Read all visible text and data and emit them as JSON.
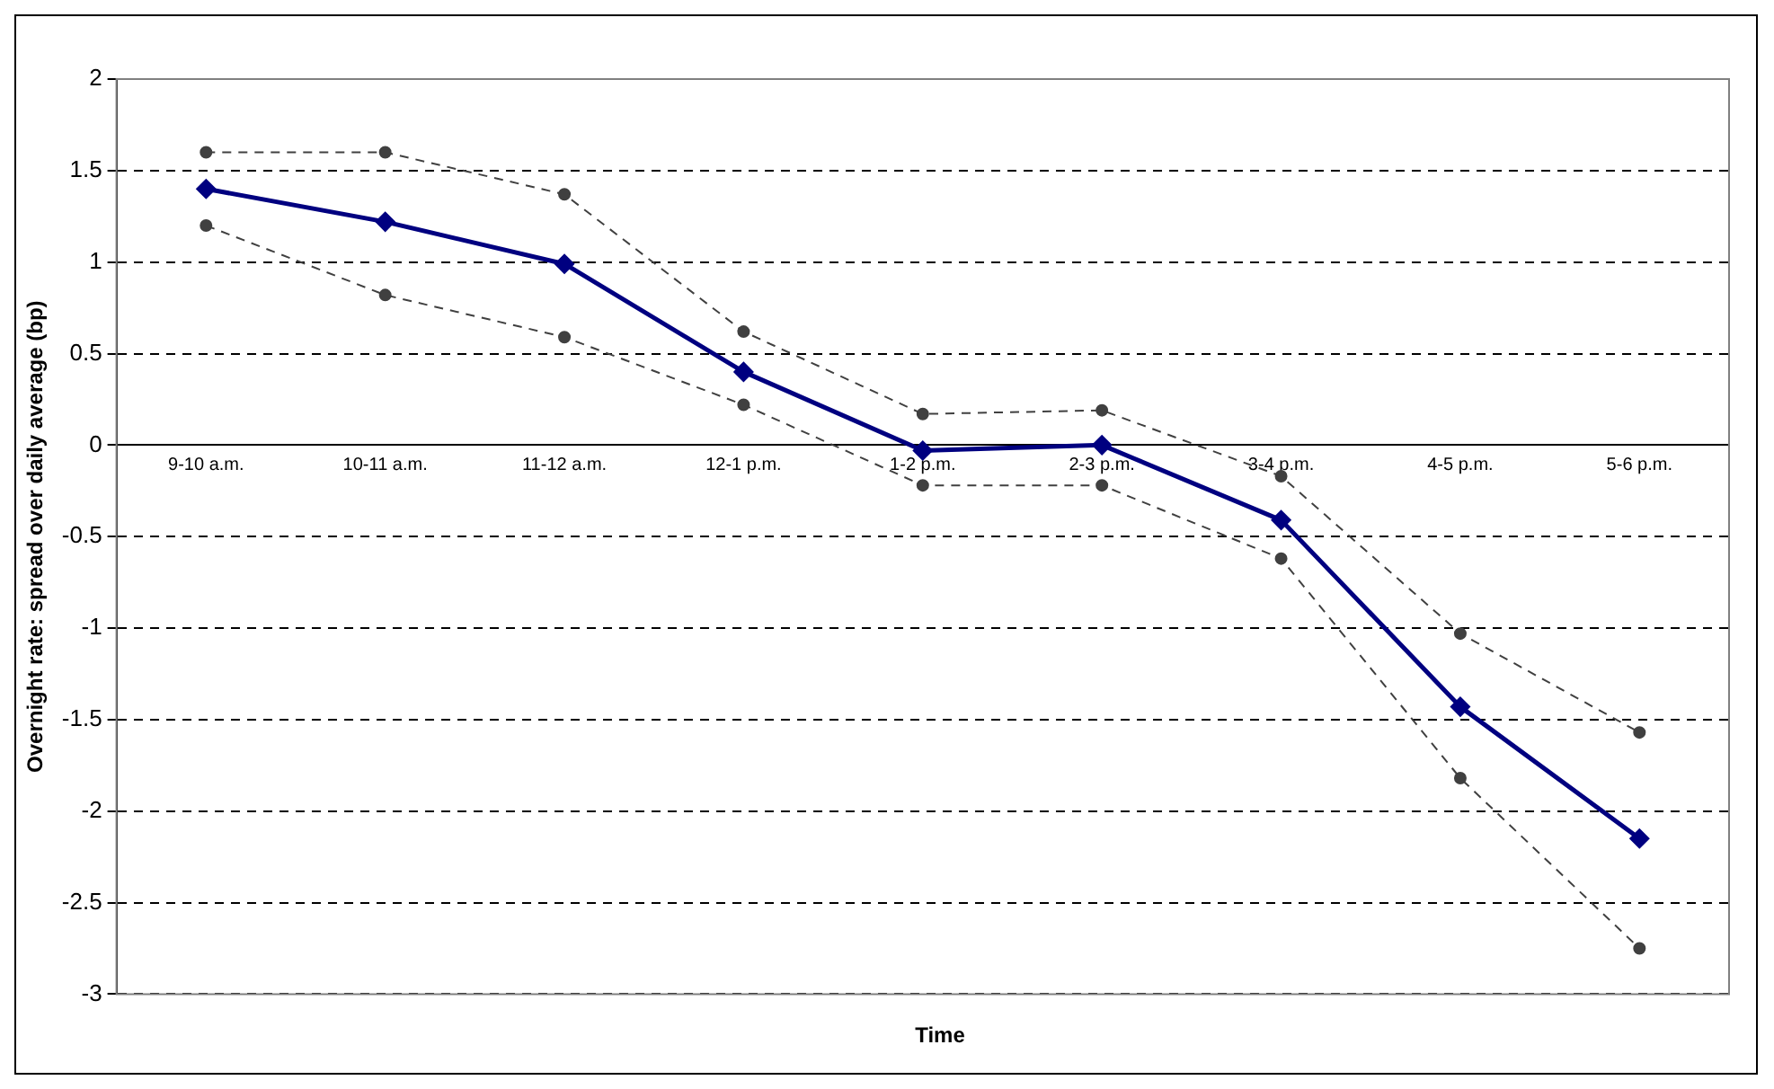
{
  "chart_data": {
    "type": "line",
    "xlabel": "Time",
    "ylabel": "Overnight rate: spread over daily average (bp)",
    "categories": [
      "9-10 a.m.",
      "10-11 a.m.",
      "11-12 a.m.",
      "12-1 p.m.",
      "1-2 p.m.",
      "2-3 p.m.",
      "3-4 p.m.",
      "4-5 p.m.",
      "5-6 p.m."
    ],
    "series": [
      {
        "color": "#000080",
        "marker": "diamond",
        "line_style": "solid",
        "values": [
          1.4,
          1.22,
          0.99,
          0.4,
          -0.03,
          0,
          -0.41,
          -1.43,
          -2.15
        ]
      },
      {
        "color": "#404040",
        "marker": "circle",
        "line_style": "dashed",
        "values": [
          1.6,
          1.6,
          1.37,
          0.62,
          0.17,
          0.19,
          -0.17,
          -1.03,
          -1.57
        ]
      },
      {
        "color": "#404040",
        "marker": "circle",
        "line_style": "dashed",
        "values": [
          1.2,
          0.82,
          0.59,
          0.22,
          -0.22,
          -0.22,
          -0.62,
          -1.82,
          -2.75
        ]
      }
    ],
    "ylim": [
      -3,
      2
    ],
    "yticks": [
      -3,
      -2.5,
      -2,
      -1.5,
      -1,
      -0.5,
      0,
      0.5,
      1,
      1.5,
      2
    ],
    "grid": "y",
    "legend": false
  }
}
